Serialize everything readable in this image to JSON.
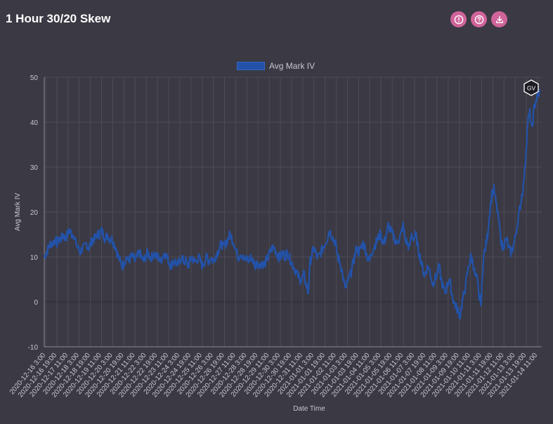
{
  "header": {
    "title": "1 Hour 30/20 Skew",
    "buttons": [
      {
        "name": "info-button",
        "icon": "alert-circle-icon"
      },
      {
        "name": "help-button",
        "icon": "help-circle-icon"
      },
      {
        "name": "download-button",
        "icon": "download-icon"
      }
    ]
  },
  "colors": {
    "background": "#3a3944",
    "accent": "#d0649a",
    "series": "#2352a8",
    "grid": "#4d4c57"
  },
  "logo_text": "GV",
  "chart_data": {
    "type": "line",
    "xlabel": "Date Time",
    "ylabel": "Avg Mark IV",
    "ylim": [
      -10,
      50
    ],
    "yticks": [
      -10,
      0,
      10,
      20,
      30,
      40,
      50
    ],
    "grid": true,
    "legend_position": "top",
    "series": [
      {
        "name": "Avg Mark IV",
        "x_start": "2020-12-16 3:00",
        "interval": "1 hour",
        "values_every_4h": [
          10,
          11,
          12,
          13,
          13,
          14,
          13,
          14,
          14,
          15,
          14,
          15,
          16,
          15,
          15,
          13,
          12,
          11,
          12,
          12,
          13,
          12,
          13,
          14,
          14,
          15,
          15,
          16,
          15,
          14,
          15,
          14,
          14,
          13,
          12,
          10,
          9,
          8,
          9,
          10,
          9,
          10,
          10,
          9,
          10,
          11,
          10,
          9,
          10,
          11,
          10,
          10,
          11,
          10,
          10,
          9,
          10,
          11,
          10,
          9,
          8,
          9,
          9,
          8,
          9,
          10,
          9,
          9,
          8,
          9,
          10,
          9,
          9,
          10,
          9,
          8,
          9,
          10,
          9,
          10,
          9,
          10,
          11,
          12,
          13,
          12,
          13,
          14,
          15,
          14,
          13,
          11,
          10,
          11,
          10,
          9,
          10,
          9,
          10,
          9,
          8,
          9,
          8,
          9,
          8,
          9,
          10,
          11,
          12,
          12,
          11,
          10,
          10,
          11,
          10,
          11,
          10,
          9,
          8,
          7,
          6,
          5,
          5,
          6,
          4,
          2,
          9,
          11,
          12,
          10,
          10,
          11,
          12,
          13,
          14,
          16,
          15,
          14,
          13,
          10,
          9,
          7,
          4,
          3,
          5,
          6,
          8,
          10,
          12,
          11,
          12,
          13,
          12,
          10,
          9,
          11,
          12,
          13,
          14,
          15,
          14,
          13,
          15,
          17,
          16,
          15,
          14,
          13,
          14,
          15,
          17,
          14,
          13,
          12,
          15,
          14,
          15,
          12,
          10,
          8,
          6,
          7,
          8,
          6,
          4,
          5,
          6,
          8,
          5,
          3,
          2,
          4,
          5,
          2,
          0,
          -1,
          -2,
          -3,
          0,
          2,
          5,
          8,
          10,
          9,
          6,
          5,
          1,
          0,
          10,
          12,
          15,
          20,
          24,
          25,
          22,
          19,
          15,
          12,
          13,
          14,
          12,
          11,
          12,
          14,
          17,
          20,
          23,
          26,
          32,
          40,
          42,
          38,
          43,
          45,
          46,
          47
        ]
      }
    ],
    "x_ticks": [
      "2020-12-16 3:00",
      "2020-12-16 19:00",
      "2020-12-17 11:00",
      "2020-12-18 3:00",
      "2020-12-18 19:00",
      "2020-12-19 11:00",
      "2020-12-20 3:00",
      "2020-12-20 19:00",
      "2020-12-21 11:00",
      "2020-12-22 3:00",
      "2020-12-22 19:00",
      "2020-12-23 11:00",
      "2020-12-24 3:00",
      "2020-12-24 19:00",
      "2020-12-25 11:00",
      "2020-12-26 3:00",
      "2020-12-26 19:00",
      "2020-12-27 11:00",
      "2020-12-28 3:00",
      "2020-12-28 19:00",
      "2020-12-29 11:00",
      "2020-12-30 3:00",
      "2020-12-30 19:00",
      "2020-12-31 11:00",
      "2021-01-01 3:00",
      "2021-01-01 19:00",
      "2021-01-02 11:00",
      "2021-01-03 3:00",
      "2021-01-03 19:00",
      "2021-01-04 11:00",
      "2021-01-05 3:00",
      "2021-01-05 19:00",
      "2021-01-06 11:00",
      "2021-01-07 3:00",
      "2021-01-07 19:00",
      "2021-01-08 11:00",
      "2021-01-09 3:00",
      "2021-01-09 19:00",
      "2021-01-10 11:00",
      "2021-01-11 3:00",
      "2021-01-11 19:00",
      "2021-01-12 11:00",
      "2021-01-13 3:00",
      "2021-01-13 19:00",
      "2021-01-14 11:00"
    ]
  }
}
